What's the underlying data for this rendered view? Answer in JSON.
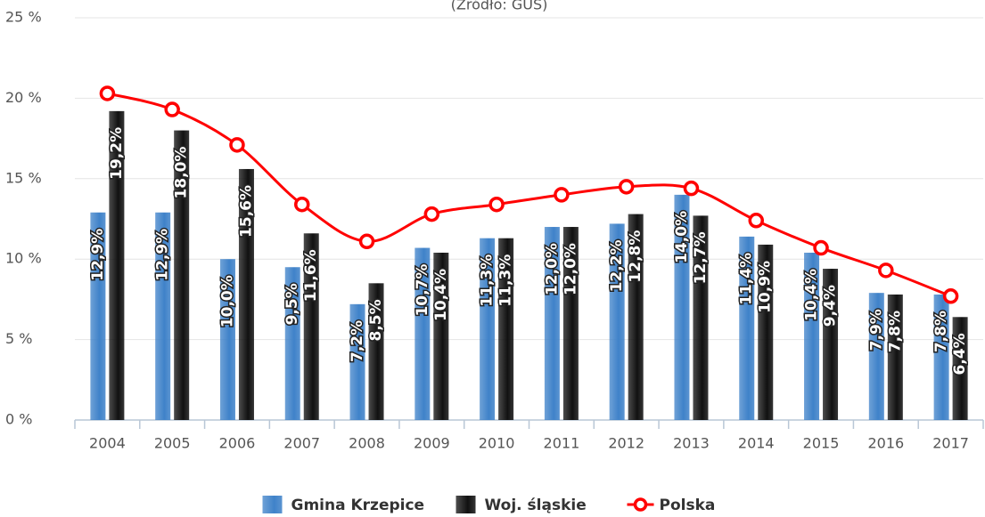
{
  "chart_data": {
    "type": "bar",
    "subtitle": "(Źródło: GUS)",
    "categories": [
      "2004",
      "2005",
      "2006",
      "2007",
      "2008",
      "2009",
      "2010",
      "2011",
      "2012",
      "2013",
      "2014",
      "2015",
      "2016",
      "2017"
    ],
    "series": [
      {
        "name": "Gmina Krzepice",
        "color": "#3f82c9",
        "type": "bar",
        "values": [
          12.9,
          12.9,
          10.0,
          9.5,
          7.2,
          10.7,
          11.3,
          12.0,
          12.2,
          14.0,
          11.4,
          10.4,
          7.9,
          7.8
        ],
        "value_labels": [
          "12,9%",
          "12,9%",
          "10,0%",
          "9,5%",
          "7,2%",
          "10,7%",
          "11,3%",
          "12,0%",
          "12,2%",
          "14,0%",
          "11,4%",
          "10,4%",
          "7,9%",
          "7,8%"
        ]
      },
      {
        "name": "Woj. śląskie",
        "color": "#111111",
        "type": "bar",
        "values": [
          19.2,
          18.0,
          15.6,
          11.6,
          8.5,
          10.4,
          11.3,
          12.0,
          12.8,
          12.7,
          10.9,
          9.4,
          7.8,
          6.4
        ],
        "value_labels": [
          "19,2%",
          "18,0%",
          "15,6%",
          "11,6%",
          "8,5%",
          "10,4%",
          "11,3%",
          "12,0%",
          "12,8%",
          "12,7%",
          "10,9%",
          "9,4%",
          "7,8%",
          "6,4%"
        ]
      },
      {
        "name": "Polska",
        "color": "#ff0000",
        "type": "line",
        "values": [
          20.3,
          19.3,
          17.1,
          13.4,
          11.1,
          12.8,
          13.4,
          14.0,
          14.5,
          14.4,
          12.4,
          10.7,
          9.3,
          7.7
        ]
      }
    ],
    "ylim": [
      0,
      25
    ],
    "yticks": [
      {
        "value": 0,
        "label": "0 %"
      },
      {
        "value": 5,
        "label": "5 %"
      },
      {
        "value": 10,
        "label": "10 %"
      },
      {
        "value": 15,
        "label": "15 %"
      },
      {
        "value": 20,
        "label": "20 %"
      },
      {
        "value": 25,
        "label": "25 %"
      }
    ],
    "grid": true,
    "legend": "bottom"
  }
}
